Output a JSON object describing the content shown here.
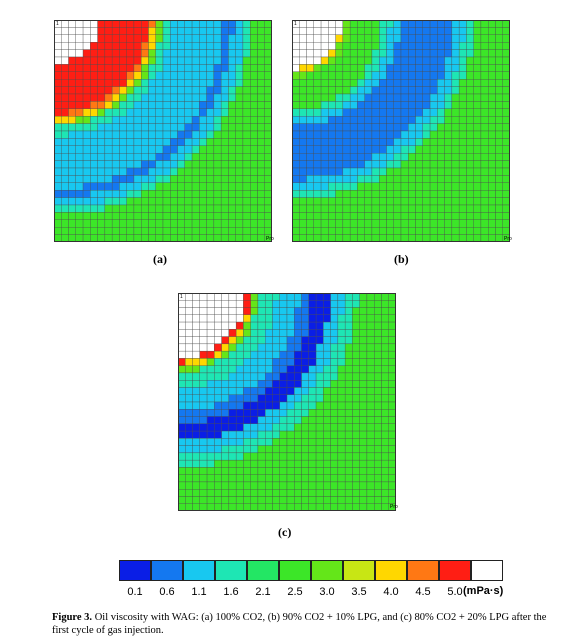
{
  "panels": [
    {
      "id": "a",
      "label": "(a)",
      "corner_text": "1",
      "pro_text": "Pro",
      "scenario": "100% CO2"
    },
    {
      "id": "b",
      "label": "(b)",
      "corner_text": "1",
      "pro_text": "Pro",
      "scenario": "90% CO2 + 10% LPG"
    },
    {
      "id": "c",
      "label": "(c)",
      "corner_text": "1",
      "pro_text": "Pro",
      "scenario": "80% CO2 + 20% LPG"
    }
  ],
  "legend": {
    "unit": "(mPa·s)",
    "ticks": [
      "0.1",
      "0.6",
      "1.1",
      "1.6",
      "2.1",
      "2.5",
      "3.0",
      "3.5",
      "4.0",
      "4.5",
      "5.0"
    ],
    "colors": [
      "#0a1ee6",
      "#1478f0",
      "#18c8f0",
      "#1ee6b4",
      "#23e664",
      "#3ce628",
      "#64e619",
      "#c8e614",
      "#ffd700",
      "#ff7814",
      "#ff1e14",
      "#ffffff"
    ]
  },
  "caption": {
    "figure_label": "Figure 3.",
    "text": "Oil viscosity with WAG: (a) 100% CO2, (b) 90% CO2 + 10% LPG, and (c) 80% CO2 + 20% LPG after the first cycle of gas injection."
  }
}
